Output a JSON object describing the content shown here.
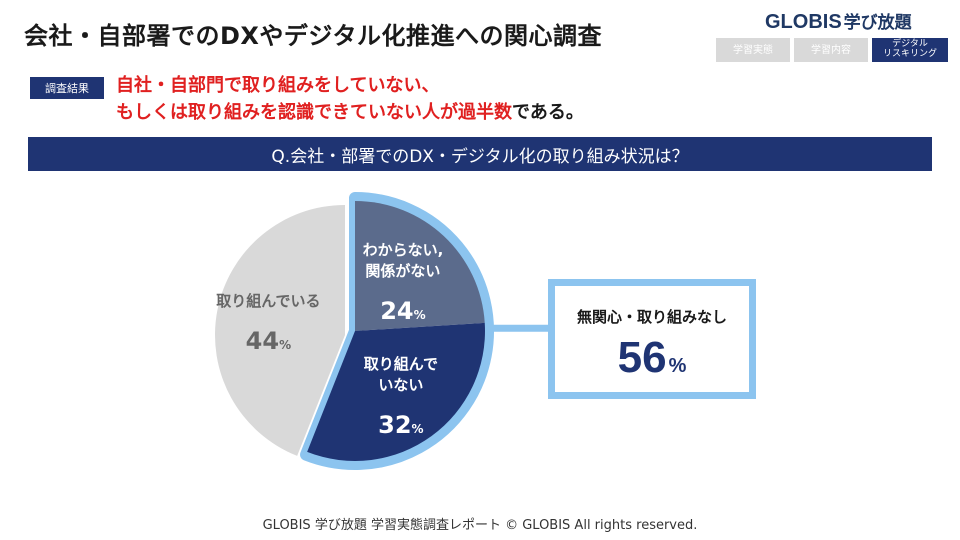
{
  "header": {
    "title": "会社・自部署でのDXやデジタル化推進への関心調査",
    "brand_name": "GLOBIS",
    "brand_sub": "学び放題",
    "tabs": [
      "学習実態",
      "学習内容",
      "デジタル\nリスキリング"
    ]
  },
  "result": {
    "badge": "調査結果",
    "line1": "自社・自部門で取り組みをしていない、",
    "line2_red": "もしくは取り組みを認識できていない人が過半数",
    "line2_rest": "である。"
  },
  "question": "Q.会社・部署でのDX・デジタル化の取り組み状況は？",
  "callout": {
    "label": "無関心・取り組みなし",
    "value": "56",
    "unit": "%"
  },
  "chart_data": {
    "type": "pie",
    "title": "Q.会社・部署でのDX・デジタル化の取り組み状況は？",
    "unit": "%",
    "slices": [
      {
        "label_lines": [
          "わからない,",
          "関係がない"
        ],
        "value": 24,
        "color": "#5b6b8c",
        "text_color": "#ffffff",
        "exploded": true
      },
      {
        "label_lines": [
          "取り組んで",
          "いない"
        ],
        "value": 32,
        "color": "#1f3473",
        "text_color": "#ffffff",
        "exploded": true
      },
      {
        "label_lines": [
          "取り組んでいる"
        ],
        "value": 44,
        "color": "#d9d9d9",
        "text_color": "#666666",
        "exploded": false
      }
    ],
    "highlight_color": "#8cc4ef"
  },
  "footer": "GLOBIS 学び放題 学習実態調査レポート © GLOBIS All rights reserved."
}
